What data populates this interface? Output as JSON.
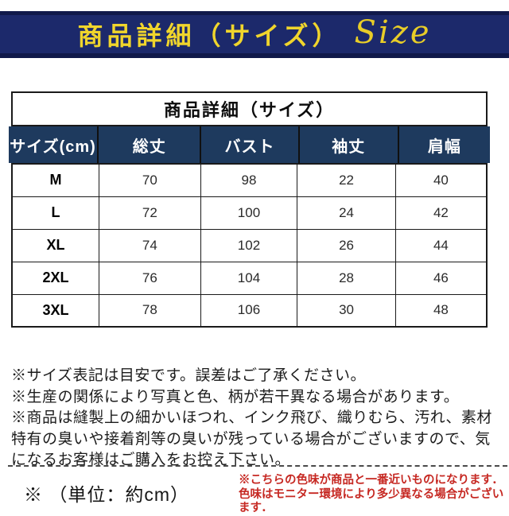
{
  "banner": {
    "title_jp": "商品詳細（サイズ）",
    "title_en": "Size",
    "bg_color": "#1c296b",
    "edge_color": "#10194a",
    "text_color": "#f0d52c"
  },
  "table": {
    "title": "商品詳細（サイズ）",
    "header_bg": "#1e3a5e",
    "header_text_color": "#ffffff",
    "columns": [
      "サイズ(cm)",
      "総丈",
      "バスト",
      "袖丈",
      "肩幅"
    ],
    "rows": [
      {
        "label": "M",
        "values": [
          70,
          98,
          22,
          40
        ]
      },
      {
        "label": "L",
        "values": [
          72,
          100,
          24,
          42
        ]
      },
      {
        "label": "XL",
        "values": [
          74,
          102,
          26,
          44
        ]
      },
      {
        "label": "2XL",
        "values": [
          76,
          104,
          28,
          46
        ]
      },
      {
        "label": "3XL",
        "values": [
          78,
          106,
          30,
          48
        ]
      }
    ]
  },
  "notes": [
    "※サイズ表記は目安です。誤差はご了承ください。",
    "※生産の関係により写真と色、柄が若干異なる場合があります。",
    "※商品は縫製上の細かいほつれ、インク飛び、織りむら、汚れ、素材特有の臭いや接着剤等の臭いが残っている場合がございますので、気になるお客様はご購入をお控え下さい。"
  ],
  "footer": {
    "unit_note": "※ （単位：約cm）",
    "color_note_line1": "※こちらの色味が商品と一番近いものになります．",
    "color_note_line2": "色味はモニター環境により多少異なる場合がございます．",
    "color_note_color": "#c62822"
  }
}
